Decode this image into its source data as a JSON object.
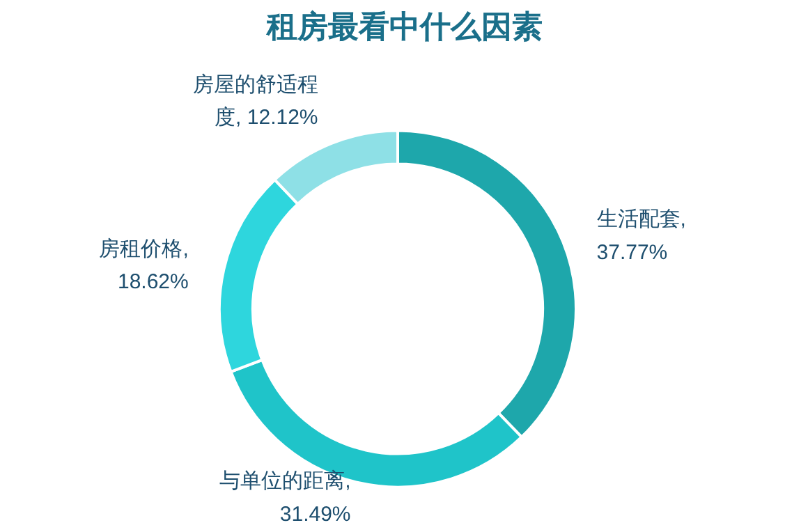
{
  "chart_data": {
    "type": "donut",
    "title": "租房最看中什么因素",
    "categories": [
      null,
      null,
      null,
      null
    ],
    "value_labels": [
      "生活配套, 37.77%",
      "与单位的距离, 31.49%",
      "房租价格, 18.62%",
      "房屋的舒适程度, 12.12%"
    ],
    "values": [
      37.77,
      31.49,
      18.62,
      12.12
    ],
    "colors": [
      "#1ea7ab",
      "#1fc4c9",
      "#2ed6dd",
      "#8ee0e6"
    ],
    "data_labels": true
  }
}
